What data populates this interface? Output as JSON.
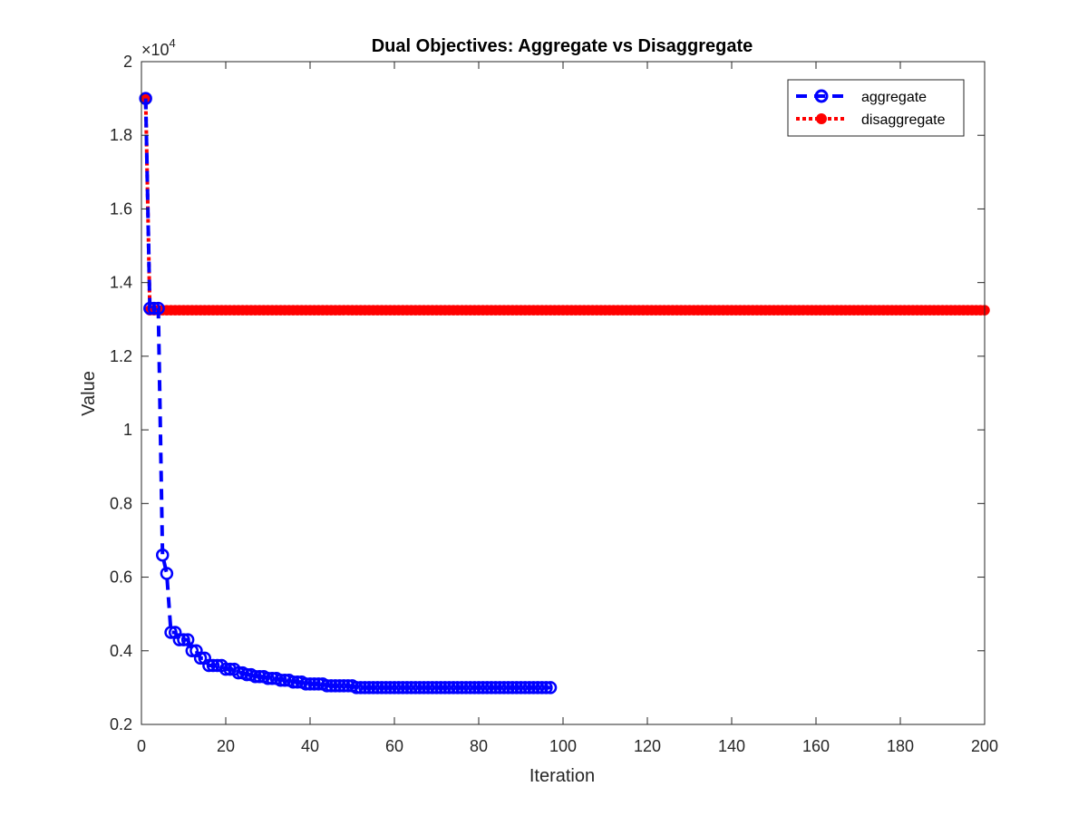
{
  "chart_data": {
    "type": "line",
    "title": "Dual Objectives: Aggregate vs Disaggregate",
    "xlabel": "Iteration",
    "ylabel": "Value",
    "y_exponent_label": "×10",
    "y_exponent_power": "4",
    "xlim": [
      0,
      200
    ],
    "ylim": [
      0.2,
      2.0
    ],
    "y_scale_factor": 10000,
    "xticks": [
      0,
      20,
      40,
      60,
      80,
      100,
      120,
      140,
      160,
      180,
      200
    ],
    "xtick_labels": [
      "0",
      "20",
      "40",
      "60",
      "80",
      "100",
      "120",
      "140",
      "160",
      "180",
      "200"
    ],
    "yticks": [
      0.2,
      0.4,
      0.6,
      0.8,
      1.0,
      1.2,
      1.4,
      1.6,
      1.8,
      2.0
    ],
    "ytick_labels": [
      "0.2",
      "0.4",
      "0.6",
      "0.8",
      "1",
      "1.2",
      "1.4",
      "1.6",
      "1.8",
      "2"
    ],
    "legend_position": "top-right",
    "grid": false,
    "series": [
      {
        "name": "aggregate",
        "color": "#0000ff",
        "line_style": "dashed",
        "marker": "open-circle",
        "x_start": 1,
        "values": [
          1.9,
          1.33,
          1.33,
          1.33,
          0.66,
          0.61,
          0.45,
          0.45,
          0.43,
          0.43,
          0.43,
          0.4,
          0.4,
          0.38,
          0.38,
          0.36,
          0.36,
          0.36,
          0.36,
          0.35,
          0.35,
          0.35,
          0.34,
          0.34,
          0.335,
          0.335,
          0.33,
          0.33,
          0.33,
          0.325,
          0.325,
          0.325,
          0.32,
          0.32,
          0.32,
          0.315,
          0.315,
          0.315,
          0.31,
          0.31,
          0.31,
          0.31,
          0.31,
          0.305,
          0.305,
          0.305,
          0.305,
          0.305,
          0.305,
          0.305,
          0.3,
          0.3,
          0.3,
          0.3,
          0.3,
          0.3,
          0.3,
          0.3,
          0.3,
          0.3,
          0.3,
          0.3,
          0.3,
          0.3,
          0.3,
          0.3,
          0.3,
          0.3,
          0.3,
          0.3,
          0.3,
          0.3,
          0.3,
          0.3,
          0.3,
          0.3,
          0.3,
          0.3,
          0.3,
          0.3,
          0.3,
          0.3,
          0.3,
          0.3,
          0.3,
          0.3,
          0.3,
          0.3,
          0.3,
          0.3,
          0.3,
          0.3,
          0.3,
          0.3,
          0.3,
          0.3,
          0.3
        ]
      },
      {
        "name": "disaggregate",
        "color": "#ff0000",
        "line_style": "dotted",
        "marker": "filled-circle",
        "x_start": 1,
        "first_values": [
          1.9
        ],
        "count": 200,
        "rest_value": 1.325
      }
    ]
  }
}
